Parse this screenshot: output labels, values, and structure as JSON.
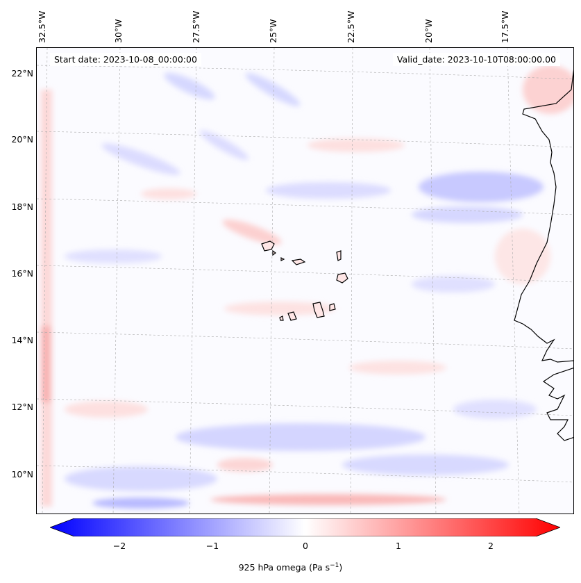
{
  "header": {
    "start_date": "Start date: 2023-10-08_00:00:00",
    "valid_date": "Valid_date: 2023-10-10T08:00:00.00"
  },
  "lon_labels": [
    "32.5°W",
    "30°W",
    "27.5°W",
    "25°W",
    "22.5°W",
    "20°W",
    "17.5°W"
  ],
  "lat_labels": [
    "22°N",
    "20°N",
    "18°N",
    "16°N",
    "14°N",
    "12°N",
    "10°N"
  ],
  "colorbar": {
    "label": "925 hPa omega (Pa s",
    "label_sup": "−1",
    "label_end": ")",
    "ticks": [
      "−2",
      "−1",
      "0",
      "1",
      "2"
    ],
    "range": [
      -2.5,
      2.5
    ],
    "colors": {
      "min": "#0000ff",
      "mid": "#ffffff",
      "max": "#ff0000"
    }
  },
  "map": {
    "projection": "lambert conformal",
    "coastlines": true,
    "gridlines": "dashed grey",
    "field": "925 hPa omega"
  }
}
